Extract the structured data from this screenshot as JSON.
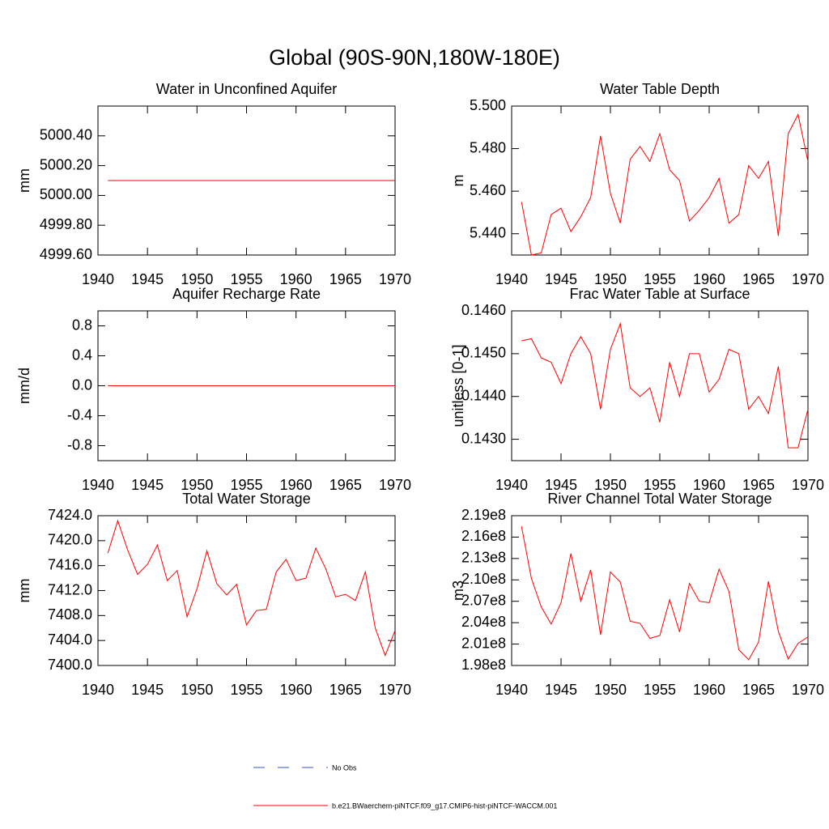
{
  "title": "Global (90S-90N,180W-180E)",
  "legend": [
    {
      "name": "No Obs",
      "color": "#3b4fd6",
      "dashed": true
    },
    {
      "name": "b.e21.BWaerchem-piNTCF.f09_g17.CMIP6-hist-piNTCF-WACCM.001",
      "color": "#ff0000",
      "dashed": false
    }
  ],
  "chart_data": [
    {
      "type": "line",
      "title": "Water in Unconfined Aquifer",
      "y_label": "mm",
      "x": [
        1941,
        1942,
        1943,
        1944,
        1945,
        1946,
        1947,
        1948,
        1949,
        1950,
        1951,
        1952,
        1953,
        1954,
        1955,
        1956,
        1957,
        1958,
        1959,
        1960,
        1961,
        1962,
        1963,
        1964,
        1965,
        1966,
        1967,
        1968,
        1969,
        1970
      ],
      "series": [
        {
          "color": "#ff0000",
          "values": [
            5000.1,
            5000.1,
            5000.1,
            5000.1,
            5000.1,
            5000.1,
            5000.1,
            5000.1,
            5000.1,
            5000.1,
            5000.1,
            5000.1,
            5000.1,
            5000.1,
            5000.1,
            5000.1,
            5000.1,
            5000.1,
            5000.1,
            5000.1,
            5000.1,
            5000.1,
            5000.1,
            5000.1,
            5000.1,
            5000.1,
            5000.1,
            5000.1,
            5000.1,
            5000.1
          ]
        }
      ],
      "xlim": [
        1940,
        1970
      ],
      "xticks": [
        1940,
        1945,
        1950,
        1955,
        1960,
        1965,
        1970
      ],
      "ylim": [
        4999.6,
        5000.6
      ],
      "yticks": [
        {
          "value": 4999.6,
          "label": "4999.60"
        },
        {
          "value": 4999.8,
          "label": "4999.80"
        },
        {
          "value": 5000,
          "label": "5000.00"
        },
        {
          "value": 5000.2,
          "label": "5000.20"
        },
        {
          "value": 5000.4,
          "label": "5000.40"
        }
      ]
    },
    {
      "type": "line",
      "title": "Water Table Depth",
      "y_label": "m",
      "x": [
        1941,
        1942,
        1943,
        1944,
        1945,
        1946,
        1947,
        1948,
        1949,
        1950,
        1951,
        1952,
        1953,
        1954,
        1955,
        1956,
        1957,
        1958,
        1959,
        1960,
        1961,
        1962,
        1963,
        1964,
        1965,
        1966,
        1967,
        1968,
        1969,
        1970
      ],
      "series": [
        {
          "color": "#ff0000",
          "values": [
            5.455,
            5.43,
            5.431,
            5.449,
            5.452,
            5.441,
            5.448,
            5.457,
            5.486,
            5.459,
            5.445,
            5.475,
            5.481,
            5.474,
            5.487,
            5.47,
            5.465,
            5.446,
            5.451,
            5.457,
            5.466,
            5.445,
            5.449,
            5.472,
            5.466,
            5.474,
            5.439,
            5.487,
            5.496,
            5.474
          ]
        }
      ],
      "xlim": [
        1940,
        1970
      ],
      "xticks": [
        1940,
        1945,
        1950,
        1955,
        1960,
        1965,
        1970
      ],
      "ylim": [
        5.43,
        5.5
      ],
      "yticks": [
        {
          "value": 5.44,
          "label": "5.440"
        },
        {
          "value": 5.46,
          "label": "5.460"
        },
        {
          "value": 5.48,
          "label": "5.480"
        },
        {
          "value": 5.5,
          "label": "5.500"
        }
      ]
    },
    {
      "type": "line",
      "title": "Aquifer Recharge Rate",
      "y_label": "mm/d",
      "x": [
        1941,
        1942,
        1943,
        1944,
        1945,
        1946,
        1947,
        1948,
        1949,
        1950,
        1951,
        1952,
        1953,
        1954,
        1955,
        1956,
        1957,
        1958,
        1959,
        1960,
        1961,
        1962,
        1963,
        1964,
        1965,
        1966,
        1967,
        1968,
        1969,
        1970
      ],
      "series": [
        {
          "color": "#ff0000",
          "values": [
            0,
            0,
            0,
            0,
            0,
            0,
            0,
            0,
            0,
            0,
            0,
            0,
            0,
            0,
            0,
            0,
            0,
            0,
            0,
            0,
            0,
            0,
            0,
            0,
            0,
            0,
            0,
            0,
            0,
            0
          ]
        }
      ],
      "xlim": [
        1940,
        1970
      ],
      "xticks": [
        1940,
        1945,
        1950,
        1955,
        1960,
        1965,
        1970
      ],
      "ylim": [
        -1,
        1
      ],
      "yticks": [
        -0.8,
        -0.4,
        {
          "value": 0,
          "label": "0.0"
        },
        0.4,
        0.8
      ]
    },
    {
      "type": "line",
      "title": "Frac Water Table at Surface",
      "y_label": "unitless [0-1]",
      "x": [
        1941,
        1942,
        1943,
        1944,
        1945,
        1946,
        1947,
        1948,
        1949,
        1950,
        1951,
        1952,
        1953,
        1954,
        1955,
        1956,
        1957,
        1958,
        1959,
        1960,
        1961,
        1962,
        1963,
        1964,
        1965,
        1966,
        1967,
        1968,
        1969,
        1970
      ],
      "series": [
        {
          "color": "#ff0000",
          "values": [
            0.1453,
            0.14535,
            0.1449,
            0.1448,
            0.1443,
            0.145,
            0.1454,
            0.145,
            0.1437,
            0.1451,
            0.1457,
            0.1442,
            0.144,
            0.1442,
            0.1434,
            0.1448,
            0.144,
            0.145,
            0.145,
            0.1441,
            0.1444,
            0.1451,
            0.145,
            0.1437,
            0.144,
            0.1436,
            0.1447,
            0.1428,
            0.1428,
            0.1437
          ]
        }
      ],
      "xlim": [
        1940,
        1970
      ],
      "xticks": [
        1940,
        1945,
        1950,
        1955,
        1960,
        1965,
        1970
      ],
      "ylim": [
        0.1425,
        0.146
      ],
      "yticks": [
        {
          "value": 0.143,
          "label": "0.1430"
        },
        {
          "value": 0.144,
          "label": "0.1440"
        },
        {
          "value": 0.145,
          "label": "0.1450"
        },
        {
          "value": 0.146,
          "label": "0.1460"
        }
      ]
    },
    {
      "type": "line",
      "title": "Total Water Storage",
      "y_label": "mm",
      "x": [
        1941,
        1942,
        1943,
        1944,
        1945,
        1946,
        1947,
        1948,
        1949,
        1950,
        1951,
        1952,
        1953,
        1954,
        1955,
        1956,
        1957,
        1958,
        1959,
        1960,
        1961,
        1962,
        1963,
        1964,
        1965,
        1966,
        1967,
        1968,
        1969,
        1970
      ],
      "series": [
        {
          "color": "#ff0000",
          "values": [
            7418,
            7423.2,
            7418.5,
            7414.6,
            7416.2,
            7419.3,
            7413.6,
            7415.2,
            7407.8,
            7412.3,
            7418.4,
            7413.1,
            7411.3,
            7413,
            7406.5,
            7408.8,
            7409,
            7415,
            7417,
            7413.6,
            7414,
            7418.8,
            7415.5,
            7411,
            7411.4,
            7410.4,
            7415,
            7406,
            7401.6,
            7405.6
          ]
        }
      ],
      "xlim": [
        1940,
        1970
      ],
      "xticks": [
        1940,
        1945,
        1950,
        1955,
        1960,
        1965,
        1970
      ],
      "ylim": [
        7400,
        7424
      ],
      "yticks": [
        {
          "value": 7400,
          "label": "7400.0"
        },
        {
          "value": 7404,
          "label": "7404.0"
        },
        {
          "value": 7408,
          "label": "7408.0"
        },
        {
          "value": 7412,
          "label": "7412.0"
        },
        {
          "value": 7416,
          "label": "7416.0"
        },
        {
          "value": 7420,
          "label": "7420.0"
        },
        {
          "value": 7424,
          "label": "7424.0"
        }
      ]
    },
    {
      "type": "line",
      "title": "River Channel Total Water Storage",
      "y_label": "m3",
      "x": [
        1941,
        1942,
        1943,
        1944,
        1945,
        1946,
        1947,
        1948,
        1949,
        1950,
        1951,
        1952,
        1953,
        1954,
        1955,
        1956,
        1957,
        1958,
        1959,
        1960,
        1961,
        1962,
        1963,
        1964,
        1965,
        1966,
        1967,
        1968,
        1969,
        1970
      ],
      "series": [
        {
          "color": "#ff0000",
          "values": [
            217500000,
            210200000,
            206200000,
            203800000,
            206800000,
            213700000,
            207000000,
            211400000,
            202300000,
            211100000,
            209700000,
            204200000,
            203900000,
            201800000,
            202200000,
            207200000,
            202700000,
            209500000,
            207000000,
            206800000,
            211500000,
            208400000,
            200200000,
            198800000,
            201300000,
            209800000,
            202800000,
            198900000,
            201100000,
            202000000
          ]
        }
      ],
      "xlim": [
        1940,
        1970
      ],
      "xticks": [
        1940,
        1945,
        1950,
        1955,
        1960,
        1965,
        1970
      ],
      "ylim": [
        198000000,
        219000000
      ],
      "yticks": [
        {
          "value": 198000000,
          "label": "1.98e8"
        },
        {
          "value": 201000000,
          "label": "2.01e8"
        },
        {
          "value": 204000000,
          "label": "2.04e8"
        },
        {
          "value": 207000000,
          "label": "2.07e8"
        },
        {
          "value": 210000000,
          "label": "2.10e8"
        },
        {
          "value": 213000000,
          "label": "2.13e8"
        },
        {
          "value": 216000000,
          "label": "2.16e8"
        },
        {
          "value": 219000000,
          "label": "2.19e8"
        }
      ]
    }
  ]
}
